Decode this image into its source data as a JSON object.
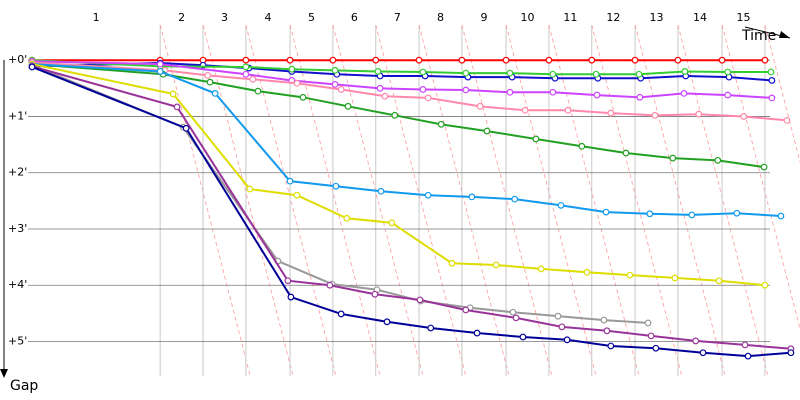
{
  "chart_data": {
    "type": "line",
    "x_label": "Time",
    "y_label": "Gap",
    "xlim": [
      -0.74,
      17.74
    ],
    "ylim": [
      -1.07,
      6.04
    ],
    "yticks": [
      {
        "value": 0,
        "label": "+0'"
      },
      {
        "value": 1,
        "label": "+1'"
      },
      {
        "value": 2,
        "label": "+2'"
      },
      {
        "value": 3,
        "label": "+3'"
      },
      {
        "value": 4,
        "label": "+4'"
      },
      {
        "value": 5,
        "label": "+5'"
      }
    ],
    "grid": true,
    "lap_labels": [
      "1",
      "2",
      "3",
      "4",
      "5",
      "6",
      "7",
      "8",
      "9",
      "10",
      "11",
      "12",
      "13",
      "14",
      "15"
    ],
    "lap_bounds": [
      0,
      2.96,
      3.95,
      4.94,
      5.96,
      6.95,
      7.94,
      8.94,
      9.93,
      10.95,
      11.94,
      12.93,
      13.93,
      14.92,
      15.94,
      16.93
    ],
    "series": [
      {
        "color": "#ff0000",
        "x": [
          0,
          2.96,
          3.95,
          4.94,
          5.96,
          6.95,
          7.94,
          8.94,
          9.93,
          10.95,
          11.94,
          12.93,
          13.93,
          14.92,
          15.94,
          16.93
        ],
        "values": [
          0,
          0,
          0,
          0,
          0,
          0,
          0,
          0,
          0,
          0,
          0,
          0,
          0,
          0,
          0,
          0
        ]
      },
      {
        "color": "#1111cc",
        "x": [
          0,
          2.96,
          3.95,
          5.01,
          6.0,
          7.04,
          8.04,
          9.08,
          10.07,
          11.09,
          12.08,
          13.07,
          14.06,
          15.1,
          16.1,
          17.09
        ],
        "values": [
          0.11,
          0.05,
          0.09,
          0.14,
          0.2,
          0.25,
          0.28,
          0.28,
          0.3,
          0.3,
          0.32,
          0.32,
          0.32,
          0.28,
          0.3,
          0.36
        ]
      },
      {
        "color": "#33cc33",
        "x": [
          0,
          2.96,
          4.94,
          6.0,
          7.0,
          7.99,
          9.03,
          10.02,
          11.04,
          12.03,
          13.03,
          14.02,
          15.08,
          16.07,
          17.07
        ],
        "values": [
          0,
          0.11,
          0.12,
          0.16,
          0.18,
          0.2,
          0.21,
          0.23,
          0.23,
          0.25,
          0.25,
          0.25,
          0.2,
          0.21,
          0.21
        ]
      },
      {
        "color": "#cc44ff",
        "x": [
          0,
          2.96,
          4.94,
          6.0,
          7.0,
          8.04,
          9.03,
          10.02,
          11.04,
          12.03,
          13.05,
          14.04,
          15.06,
          16.07,
          17.09
        ],
        "values": [
          0.02,
          0.07,
          0.25,
          0.36,
          0.43,
          0.5,
          0.52,
          0.53,
          0.57,
          0.57,
          0.62,
          0.66,
          0.59,
          0.62,
          0.67
        ]
      },
      {
        "color": "#ff88aa",
        "x": [
          0,
          3.07,
          4.06,
          5.1,
          6.12,
          7.14,
          8.15,
          9.15,
          10.35,
          11.39,
          12.38,
          13.37,
          14.39,
          15.4,
          16.44,
          17.44
        ],
        "values": [
          0.04,
          0.18,
          0.27,
          0.34,
          0.41,
          0.52,
          0.64,
          0.67,
          0.82,
          0.89,
          0.89,
          0.94,
          0.98,
          0.96,
          1.0,
          1.07
        ]
      },
      {
        "color": "#22a022",
        "x": [
          0,
          3.03,
          4.11,
          5.22,
          6.26,
          7.3,
          8.38,
          9.45,
          10.51,
          11.64,
          12.7,
          13.72,
          14.8,
          15.84,
          16.91
        ],
        "values": [
          0.07,
          0.25,
          0.39,
          0.55,
          0.66,
          0.82,
          0.98,
          1.14,
          1.26,
          1.4,
          1.53,
          1.65,
          1.74,
          1.78,
          1.9
        ]
      },
      {
        "color": "#1199ee",
        "x": [
          0,
          2.96,
          4.23,
          5.96,
          7.02,
          8.06,
          9.15,
          10.16,
          11.15,
          12.22,
          13.26,
          14.27,
          15.24,
          16.28,
          17.3
        ],
        "values": [
          0.07,
          0.2,
          0.59,
          2.15,
          2.24,
          2.33,
          2.4,
          2.43,
          2.47,
          2.58,
          2.7,
          2.73,
          2.75,
          2.72,
          2.77
        ]
      },
      {
        "color": "#dddd00",
        "x": [
          0,
          3.26,
          5.03,
          6.12,
          7.27,
          8.31,
          9.7,
          10.72,
          11.76,
          12.82,
          13.81,
          14.85,
          15.87,
          16.93
        ],
        "values": [
          0.07,
          0.6,
          2.29,
          2.4,
          2.81,
          2.89,
          3.61,
          3.64,
          3.71,
          3.77,
          3.82,
          3.87,
          3.92,
          4.0
        ]
      },
      {
        "color": "#999999",
        "x": [
          0,
          3.49,
          5.68,
          6.93,
          7.97,
          8.98,
          10.12,
          11.11,
          12.15,
          13.21,
          14.23
        ],
        "values": [
          0.09,
          1.19,
          3.57,
          3.98,
          4.08,
          4.28,
          4.4,
          4.48,
          4.55,
          4.62,
          4.67
        ]
      },
      {
        "color": "#993399",
        "x": [
          0,
          3.35,
          5.91,
          6.88,
          7.92,
          8.96,
          10.02,
          11.18,
          12.24,
          13.28,
          14.3,
          15.33,
          16.47,
          17.53
        ],
        "values": [
          0.11,
          0.83,
          3.92,
          4.0,
          4.16,
          4.26,
          4.44,
          4.58,
          4.74,
          4.81,
          4.9,
          4.99,
          5.06,
          5.13
        ]
      },
      {
        "color": "#000099",
        "x": [
          0,
          3.56,
          5.98,
          7.14,
          8.2,
          9.21,
          10.28,
          11.34,
          12.36,
          13.37,
          14.41,
          15.5,
          16.54,
          17.53
        ],
        "values": [
          0.12,
          1.21,
          4.21,
          4.51,
          4.65,
          4.76,
          4.85,
          4.92,
          4.97,
          5.08,
          5.12,
          5.2,
          5.26,
          5.2
        ]
      }
    ]
  }
}
